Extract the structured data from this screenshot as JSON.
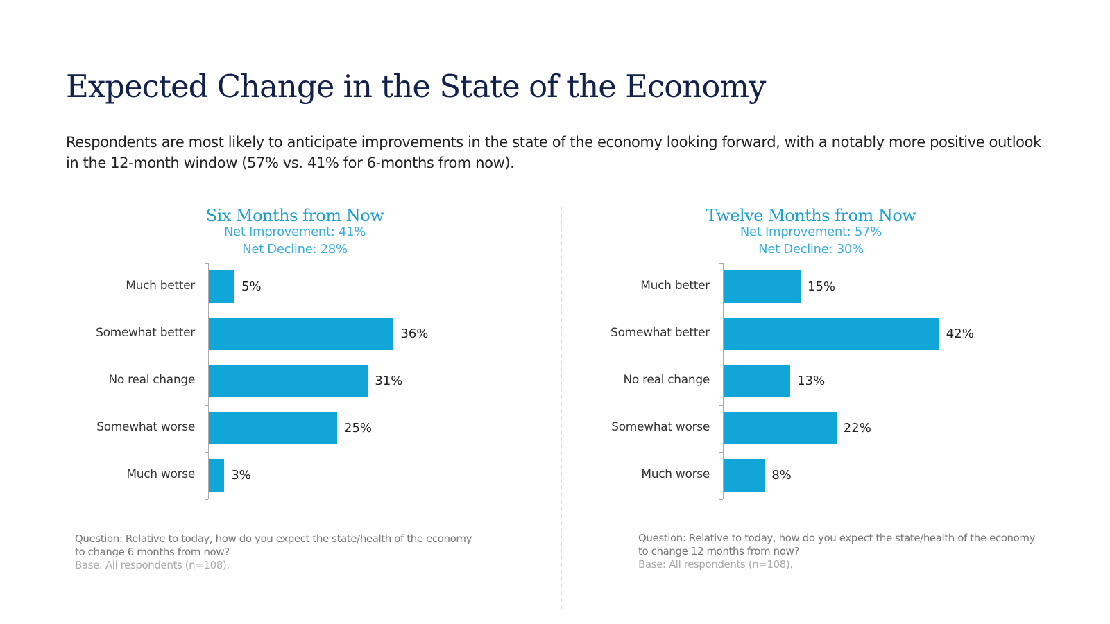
{
  "title": "Expected Change in the State of the Economy",
  "subtitle": "Respondents are most likely to anticipate improvements in the state of the economy looking forward, with a notably more positive outlook in the 12-month window (57% vs. 41% for 6-months from now).",
  "chart_data": [
    {
      "type": "bar",
      "orientation": "horizontal",
      "title": "Six Months from Now",
      "net_improvement": "Net Improvement: 41%",
      "net_decline": "Net Decline: 28%",
      "categories": [
        "Much better",
        "Somewhat better",
        "No real change",
        "Somewhat worse",
        "Much worse"
      ],
      "values": [
        5,
        36,
        31,
        25,
        3
      ],
      "labels": [
        "5%",
        "36%",
        "31%",
        "25%",
        "3%"
      ],
      "color": "#12a6d8",
      "question": "Question: Relative to today, how do you expect the state/health of the economy to change 6 months from now?",
      "base": "Base: All respondents (n=108)."
    },
    {
      "type": "bar",
      "orientation": "horizontal",
      "title": "Twelve Months from Now",
      "net_improvement": "Net Improvement: 57%",
      "net_decline": "Net Decline: 30%",
      "categories": [
        "Much better",
        "Somewhat better",
        "No real change",
        "Somewhat worse",
        "Much worse"
      ],
      "values": [
        15,
        42,
        13,
        22,
        8
      ],
      "labels": [
        "15%",
        "42%",
        "13%",
        "22%",
        "8%"
      ],
      "color": "#12a6d8",
      "question": "Question: Relative to today, how do you expect the state/health of the economy to change 12 months from now?",
      "base": "Base: All respondents (n=108)."
    }
  ]
}
